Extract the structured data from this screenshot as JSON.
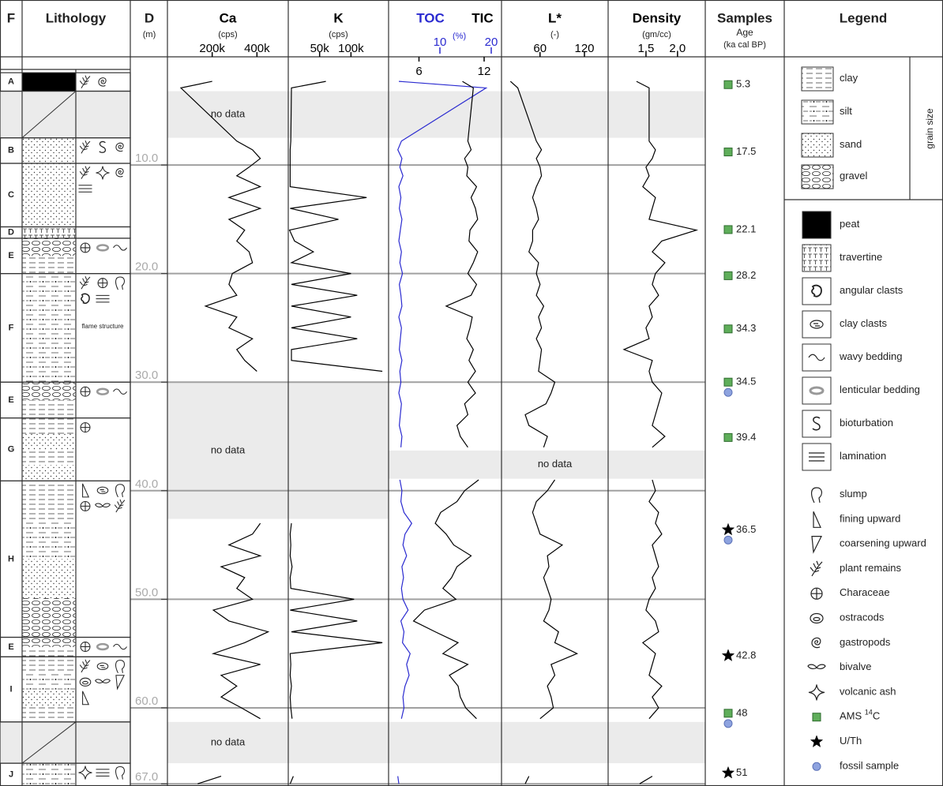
{
  "header": {
    "facies": "F",
    "lithology": "Lithology",
    "legend": "Legend"
  },
  "chart_data": {
    "type": "log",
    "ylabel": "D",
    "yunit": "(m)",
    "ylim": [
      1.2,
      67.2
    ],
    "grid": true,
    "yticks": [
      {
        "value": 10,
        "label": "10.0"
      },
      {
        "value": 20,
        "label": "20.0"
      },
      {
        "value": 30,
        "label": "30.0"
      },
      {
        "value": 40,
        "label": "40.0"
      },
      {
        "value": 50,
        "label": "50.0"
      },
      {
        "value": 60,
        "label": "60.0"
      },
      {
        "value": 67,
        "label": "67.0"
      }
    ],
    "depth": [
      2.3,
      2.9,
      7.8,
      8.6,
      9.4,
      10.2,
      11,
      12,
      13,
      14,
      15,
      16,
      17,
      18,
      19,
      20,
      21,
      22,
      23,
      24,
      25,
      26,
      27,
      28,
      29,
      30,
      31,
      32,
      33,
      34,
      35,
      36,
      37,
      38,
      39,
      40,
      41,
      42,
      43,
      44,
      45,
      46,
      47,
      48,
      49,
      50,
      51,
      52,
      53,
      54,
      55,
      56,
      57,
      58,
      59,
      60,
      61,
      65.5,
      66.3,
      67
    ],
    "tracks": [
      {
        "series": [
          {
            "name": "Ca",
            "unit": "(cps)",
            "color": "#000000",
            "xlim": [
              0,
              540000
            ],
            "xticks": [
              {
                "value": 200000,
                "label": "200k"
              },
              {
                "value": 400000,
                "label": "400k"
              }
            ],
            "values": [
              200000,
              60000,
              310000,
              380000,
              415000,
              365000,
              310000,
              415000,
              275000,
              415000,
              275000,
              345000,
              310000,
              365000,
              380000,
              290000,
              275000,
              310000,
              170000,
              310000,
              275000,
              380000,
              310000,
              345000,
              400000,
              null,
              null,
              null,
              null,
              null,
              null,
              null,
              null,
              null,
              null,
              null,
              null,
              null,
              415000,
              380000,
              275000,
              415000,
              240000,
              345000,
              310000,
              380000,
              205000,
              275000,
              450000,
              345000,
              205000,
              415000,
              240000,
              310000,
              240000,
              330000,
              415000,
              null,
              240000,
              135000
            ]
          }
        ]
      },
      {
        "series": [
          {
            "name": "K",
            "unit": "(cps)",
            "color": "#000000",
            "xlim": [
              0,
              160000
            ],
            "xticks": [
              {
                "value": 50000,
                "label": "50k"
              },
              {
                "value": 100000,
                "label": "100k"
              }
            ],
            "values": [
              60000,
              5000,
              4000,
              3000,
              3000,
              3000,
              3000,
              3000,
              125000,
              3000,
              80000,
              2000,
              10000,
              40000,
              5000,
              100000,
              5000,
              110000,
              5000,
              100000,
              5000,
              110000,
              5000,
              5000,
              150000,
              null,
              null,
              null,
              null,
              null,
              null,
              null,
              null,
              null,
              null,
              null,
              null,
              null,
              5000,
              3000,
              4000,
              3000,
              6000,
              3000,
              4000,
              105000,
              3000,
              110000,
              5000,
              150000,
              3000,
              4000,
              3000,
              5000,
              3000,
              4000,
              6000,
              null,
              8000,
              3000
            ]
          }
        ]
      },
      {
        "series": [
          {
            "name": "TOC",
            "unit": "(%)",
            "color": "#2a2ad0",
            "xlim": [
              0,
              22
            ],
            "xticks": [
              10,
              20
            ],
            "values": [
              2.0,
              19,
              2.5,
              1.8,
              2.6,
              2.2,
              2.8,
              2.0,
              2.4,
              2.1,
              2.6,
              2.3,
              2.0,
              2.5,
              2.2,
              2.7,
              2.1,
              2.4,
              2.6,
              2.0,
              2.5,
              2.3,
              2.1,
              2.6,
              2.2,
              2.4,
              2.0,
              2.5,
              2.3,
              2.1,
              2.6,
              2.4,
              null,
              null,
              2.2,
              2.6,
              2.4,
              3.0,
              4.5,
              3.2,
              2.8,
              3.5,
              2.6,
              2.9,
              2.5,
              2.8,
              3.8,
              2.4,
              3.0,
              2.7,
              4.2,
              3.5,
              4.0,
              3.2,
              2.8,
              3.0,
              2.5,
              null,
              1.8,
              2.0
            ]
          },
          {
            "name": "TIC",
            "color": "#000000",
            "xlim": [
              3.2,
              13.6
            ],
            "xticks": [
              6,
              12
            ],
            "values": [
              10,
              11,
              10.5,
              10.8,
              10.2,
              10.5,
              10.4,
              11.3,
              10.8,
              11.2,
              11.4,
              10.7,
              10.6,
              11.4,
              11,
              10.5,
              11.3,
              10.8,
              8.5,
              10.9,
              10.7,
              10.4,
              11,
              10.6,
              11.2,
              10.5,
              11.2,
              10.2,
              10.5,
              9.5,
              9.8,
              10.5,
              null,
              null,
              11.5,
              10.2,
              9.5,
              8.0,
              7.5,
              8.5,
              9.2,
              10.8,
              9.5,
              9.0,
              8.2,
              9.4,
              6.5,
              5.5,
              7.5,
              9.6,
              8.2,
              10.5,
              8.8,
              9.6,
              9.8,
              10.3,
              11.3,
              null,
              5.2,
              null
            ]
          }
        ]
      },
      {
        "series": [
          {
            "name": "L*",
            "unit": "(-)",
            "color": "#000000",
            "xlim": [
              8,
              152
            ],
            "xticks": [
              60,
              120
            ],
            "values": [
              20,
              30,
              55,
              62,
              55,
              60,
              62,
              55,
              50,
              55,
              58,
              50,
              50,
              45,
              58,
              55,
              60,
              55,
              65,
              58,
              62,
              55,
              62,
              60,
              58,
              80,
              75,
              68,
              40,
              45,
              70,
              65,
              null,
              null,
              80,
              70,
              55,
              50,
              55,
              60,
              90,
              70,
              72,
              65,
              70,
              75,
              72,
              65,
              85,
              80,
              110,
              75,
              80,
              70,
              75,
              78,
              60,
              null,
              45,
              40
            ]
          }
        ]
      },
      {
        "series": [
          {
            "name": "Density",
            "unit": "(gm/cc)",
            "color": "#000000",
            "xlim": [
              0.9,
              2.44
            ],
            "xticks": [
              1.5,
              {
                "value": 2,
                "label": "2.0"
              }
            ],
            "values": [
              1.35,
              1.55,
              1.55,
              1.65,
              1.6,
              1.5,
              1.55,
              1.45,
              1.65,
              1.6,
              1.55,
              2.3,
              1.75,
              1.6,
              1.8,
              1.65,
              1.6,
              1.7,
              1.55,
              1.6,
              1.5,
              1.55,
              1.15,
              1.6,
              1.55,
              1.6,
              1.75,
              1.7,
              1.65,
              1.6,
              1.8,
              1.6,
              null,
              null,
              1.6,
              1.65,
              1.55,
              1.7,
              1.65,
              1.75,
              1.6,
              1.65,
              1.7,
              1.6,
              1.65,
              1.55,
              1.5,
              1.65,
              1.7,
              1.45,
              1.65,
              1.6,
              1.55,
              1.75,
              1.6,
              1.7,
              1.55,
              null,
              1.6,
              1.4
            ]
          }
        ]
      }
    ],
    "no_data": {
      "label": "no data",
      "ranges": [
        {
          "top": 3.2,
          "bottom": 7.5,
          "tracks": [
            0,
            1,
            2,
            3,
            4
          ],
          "label_track": 0
        },
        {
          "top": 30.0,
          "bottom": 42.6,
          "tracks": [
            0,
            1
          ],
          "label_track": 0
        },
        {
          "top": 36.3,
          "bottom": 38.9,
          "tracks": [
            2,
            3,
            4
          ],
          "label_track": 3
        },
        {
          "top": 61.3,
          "bottom": 65.1,
          "tracks": [
            0,
            1,
            2,
            3,
            4
          ],
          "label_track": 0
        }
      ]
    },
    "facies": [
      {
        "label": "A",
        "top": 1.5,
        "bottom": 3.2,
        "lith": [
          4
        ],
        "symbols": [
          15,
          18
        ]
      },
      {
        "label": null,
        "top": 3.2,
        "bottom": 7.5,
        "lith": [],
        "symbols": []
      },
      {
        "label": "B",
        "top": 7.5,
        "bottom": 9.85,
        "lith": [
          2
        ],
        "symbols": [
          15,
          10,
          18
        ]
      },
      {
        "label": "C",
        "top": 9.85,
        "bottom": 15.7,
        "lith": [
          2
        ],
        "symbols": [
          15,
          20,
          18,
          11
        ]
      },
      {
        "label": "D",
        "top": 15.7,
        "bottom": 16.75,
        "lith": [
          5
        ],
        "symbols": []
      },
      {
        "label": "E",
        "top": 16.75,
        "bottom": 20.0,
        "lith": [
          3,
          0
        ],
        "symbols": [
          16,
          9,
          8
        ]
      },
      {
        "label": "F",
        "top": 20.0,
        "bottom": 30.0,
        "lith": [
          1
        ],
        "symbols": [
          15,
          16,
          12,
          6,
          11
        ],
        "note": "flame structure"
      },
      {
        "label": "E",
        "top": 30.0,
        "bottom": 33.3,
        "lith": [
          3,
          0
        ],
        "symbols": [
          16,
          9,
          8
        ]
      },
      {
        "label": "G",
        "top": 33.3,
        "bottom": 39.1,
        "lith": [
          0,
          2,
          0,
          2
        ],
        "symbols": [
          16
        ]
      },
      {
        "label": "H",
        "top": 39.1,
        "bottom": 53.5,
        "lith": [
          0,
          1,
          2,
          3
        ],
        "symbols": [
          13,
          7,
          12,
          16,
          19,
          15
        ]
      },
      {
        "label": "E",
        "top": 53.5,
        "bottom": 55.3,
        "lith": [
          3,
          0
        ],
        "symbols": [
          16,
          9,
          8
        ]
      },
      {
        "label": "I",
        "top": 55.3,
        "bottom": 61.3,
        "lith": [
          0,
          1,
          2,
          0
        ],
        "symbols": [
          15,
          7,
          12,
          17,
          19,
          14,
          13
        ]
      },
      {
        "label": null,
        "top": 61.3,
        "bottom": 65.1,
        "lith": [],
        "symbols": []
      },
      {
        "label": "J",
        "top": 65.1,
        "bottom": 67.2,
        "lith": [
          1
        ],
        "symbols": [
          20,
          11,
          12
        ]
      }
    ],
    "samples": {
      "title": "Samples",
      "subtitle": "Age",
      "unit": "(ka cal BP)",
      "items": [
        {
          "depth": 2.6,
          "age": 5.3,
          "method": 21,
          "fossil": false
        },
        {
          "depth": 8.8,
          "age": 17.5,
          "method": 21,
          "fossil": false
        },
        {
          "depth": 15.95,
          "age": 22.1,
          "method": 21,
          "fossil": false
        },
        {
          "depth": 20.2,
          "age": 28.2,
          "method": 21,
          "fossil": false
        },
        {
          "depth": 25.1,
          "age": 34.3,
          "method": 21,
          "fossil": false
        },
        {
          "depth": 30.0,
          "age": 34.5,
          "method": 21,
          "fossil": true
        },
        {
          "depth": 35.1,
          "age": 39.4,
          "method": 21,
          "fossil": false
        },
        {
          "depth": 43.6,
          "age": 36.5,
          "method": 22,
          "fossil": true
        },
        {
          "depth": 55.2,
          "age": 42.8,
          "method": 22,
          "fossil": false
        },
        {
          "depth": 60.5,
          "age": 48,
          "method": 21,
          "fossil": true
        },
        {
          "depth": 66.0,
          "age": 51,
          "method": 22,
          "fossil": false
        }
      ]
    }
  },
  "legend": {
    "group_label": "grain size",
    "items": [
      {
        "label": "clay"
      },
      {
        "label": "silt"
      },
      {
        "label": "sand"
      },
      {
        "label": "gravel"
      },
      {
        "label": "peat"
      },
      {
        "label": "travertine"
      },
      {
        "label": "angular clasts"
      },
      {
        "label": "clay clasts"
      },
      {
        "label": "wavy bedding"
      },
      {
        "label": "lenticular bedding"
      },
      {
        "label": "bioturbation"
      },
      {
        "label": "lamination"
      },
      {
        "label": "slump"
      },
      {
        "label": "fining upward"
      },
      {
        "label": "coarsening upward"
      },
      {
        "label": "plant remains"
      },
      {
        "label": "Characeae"
      },
      {
        "label": "ostracods"
      },
      {
        "label": "gastropods"
      },
      {
        "label": "bivalve"
      },
      {
        "label": "volcanic ash"
      },
      {
        "label": "AMS ",
        "sup": "14",
        "suffix": "C"
      },
      {
        "label": "U/Th"
      },
      {
        "label": "fossil sample"
      }
    ]
  }
}
